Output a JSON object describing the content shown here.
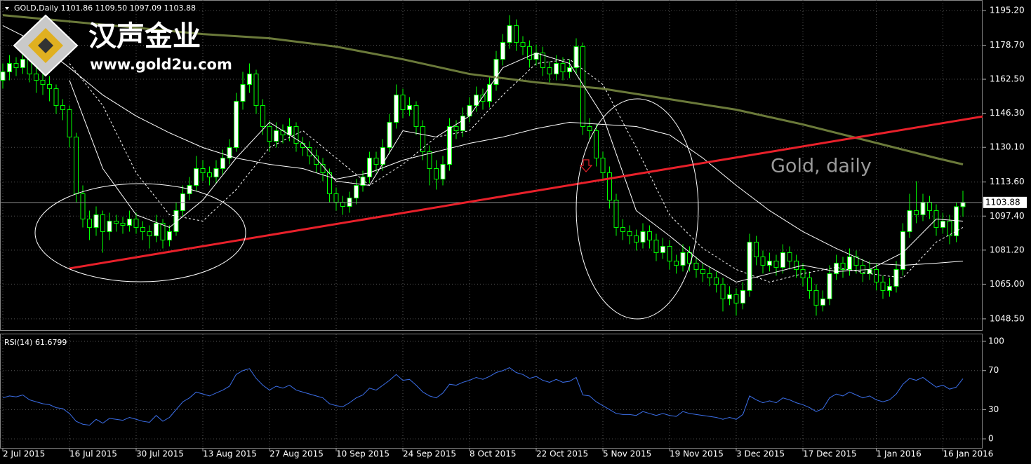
{
  "chart_data": {
    "type": "candlestick",
    "title": "GOLD,Daily 1101.86 1109.50 1097.09 1103.88",
    "rsi_title": "RSI(14) 61.6799",
    "logo_name": "汉声金业",
    "logo_url": "www.gold2u.com",
    "annotation": "Gold, daily",
    "categories": [
      "2 Jul 2015",
      null,
      null,
      null,
      null,
      null,
      null,
      null,
      null,
      null,
      "16 Jul 2015",
      null,
      null,
      null,
      null,
      null,
      null,
      null,
      null,
      null,
      "30 Jul 2015",
      null,
      null,
      null,
      null,
      null,
      null,
      null,
      null,
      null,
      "13 Aug 2015",
      null,
      null,
      null,
      null,
      null,
      null,
      null,
      null,
      null,
      "27 Aug 2015",
      null,
      null,
      null,
      null,
      null,
      null,
      null,
      null,
      null,
      "10 Sep 2015",
      null,
      null,
      null,
      null,
      null,
      null,
      null,
      null,
      null,
      "24 Sep 2015",
      null,
      null,
      null,
      null,
      null,
      null,
      null,
      null,
      null,
      "8 Oct 2015",
      null,
      null,
      null,
      null,
      null,
      null,
      null,
      null,
      null,
      "22 Oct 2015",
      null,
      null,
      null,
      null,
      null,
      null,
      null,
      null,
      null,
      "5 Nov 2015",
      null,
      null,
      null,
      null,
      null,
      null,
      null,
      null,
      null,
      "19 Nov 2015",
      null,
      null,
      null,
      null,
      null,
      null,
      null,
      null,
      null,
      "3 Dec 2015",
      null,
      null,
      null,
      null,
      null,
      null,
      null,
      null,
      null,
      "17 Dec 2015",
      null,
      null,
      null,
      null,
      null,
      null,
      null,
      null,
      null,
      null,
      "1 Jan 2016",
      null,
      null,
      null,
      null,
      null,
      null,
      null,
      null,
      null,
      "16 Jan 2016",
      null,
      null,
      null
    ],
    "ohlc": [
      [
        1162,
        1170,
        1158,
        1166
      ],
      [
        1166,
        1174,
        1162,
        1170
      ],
      [
        1170,
        1173,
        1164,
        1168
      ],
      [
        1168,
        1176,
        1165,
        1172
      ],
      [
        1172,
        1175,
        1161,
        1165
      ],
      [
        1165,
        1168,
        1156,
        1162
      ],
      [
        1162,
        1166,
        1155,
        1160
      ],
      [
        1160,
        1164,
        1152,
        1158
      ],
      [
        1158,
        1160,
        1146,
        1150
      ],
      [
        1150,
        1153,
        1143,
        1148
      ],
      [
        1148,
        1150,
        1130,
        1135
      ],
      [
        1135,
        1137,
        1104,
        1108
      ],
      [
        1108,
        1112,
        1092,
        1096
      ],
      [
        1096,
        1100,
        1086,
        1092
      ],
      [
        1092,
        1102,
        1088,
        1098
      ],
      [
        1098,
        1100,
        1080,
        1090
      ],
      [
        1090,
        1099,
        1086,
        1095
      ],
      [
        1095,
        1098,
        1090,
        1094
      ],
      [
        1094,
        1097,
        1089,
        1093
      ],
      [
        1093,
        1100,
        1090,
        1096
      ],
      [
        1096,
        1099,
        1089,
        1092
      ],
      [
        1092,
        1095,
        1086,
        1090
      ],
      [
        1090,
        1093,
        1082,
        1088
      ],
      [
        1088,
        1098,
        1085,
        1094
      ],
      [
        1094,
        1096,
        1082,
        1086
      ],
      [
        1086,
        1093,
        1083,
        1090
      ],
      [
        1090,
        1104,
        1088,
        1100
      ],
      [
        1100,
        1112,
        1097,
        1108
      ],
      [
        1108,
        1116,
        1105,
        1112
      ],
      [
        1112,
        1126,
        1109,
        1120
      ],
      [
        1120,
        1124,
        1114,
        1118
      ],
      [
        1118,
        1121,
        1112,
        1116
      ],
      [
        1116,
        1124,
        1113,
        1120
      ],
      [
        1120,
        1129,
        1117,
        1125
      ],
      [
        1125,
        1134,
        1122,
        1130
      ],
      [
        1130,
        1156,
        1128,
        1152
      ],
      [
        1152,
        1166,
        1148,
        1160
      ],
      [
        1160,
        1170,
        1156,
        1165
      ],
      [
        1165,
        1167,
        1146,
        1150
      ],
      [
        1150,
        1153,
        1136,
        1140
      ],
      [
        1140,
        1143,
        1128,
        1133
      ],
      [
        1133,
        1142,
        1130,
        1138
      ],
      [
        1138,
        1141,
        1132,
        1136
      ],
      [
        1136,
        1144,
        1133,
        1140
      ],
      [
        1140,
        1142,
        1128,
        1132
      ],
      [
        1132,
        1135,
        1126,
        1130
      ],
      [
        1130,
        1133,
        1122,
        1126
      ],
      [
        1126,
        1129,
        1118,
        1122
      ],
      [
        1122,
        1125,
        1114,
        1118
      ],
      [
        1118,
        1120,
        1104,
        1108
      ],
      [
        1108,
        1111,
        1100,
        1104
      ],
      [
        1104,
        1107,
        1098,
        1102
      ],
      [
        1102,
        1109,
        1099,
        1106
      ],
      [
        1106,
        1115,
        1103,
        1112
      ],
      [
        1112,
        1119,
        1109,
        1116
      ],
      [
        1116,
        1128,
        1113,
        1125
      ],
      [
        1125,
        1128,
        1118,
        1122
      ],
      [
        1122,
        1134,
        1119,
        1130
      ],
      [
        1130,
        1146,
        1127,
        1142
      ],
      [
        1142,
        1160,
        1139,
        1155
      ],
      [
        1155,
        1158,
        1144,
        1148
      ],
      [
        1148,
        1154,
        1145,
        1150
      ],
      [
        1150,
        1152,
        1136,
        1140
      ],
      [
        1140,
        1143,
        1124,
        1128
      ],
      [
        1128,
        1131,
        1112,
        1120
      ],
      [
        1120,
        1124,
        1110,
        1115
      ],
      [
        1115,
        1126,
        1112,
        1122
      ],
      [
        1122,
        1144,
        1119,
        1140
      ],
      [
        1140,
        1143,
        1134,
        1138
      ],
      [
        1138,
        1149,
        1135,
        1145
      ],
      [
        1145,
        1154,
        1142,
        1150
      ],
      [
        1150,
        1159,
        1147,
        1155
      ],
      [
        1155,
        1158,
        1148,
        1152
      ],
      [
        1152,
        1164,
        1149,
        1160
      ],
      [
        1160,
        1176,
        1157,
        1172
      ],
      [
        1172,
        1184,
        1169,
        1180
      ],
      [
        1180,
        1193,
        1177,
        1188
      ],
      [
        1188,
        1191,
        1176,
        1180
      ],
      [
        1180,
        1183,
        1174,
        1178
      ],
      [
        1178,
        1181,
        1168,
        1172
      ],
      [
        1172,
        1179,
        1169,
        1175
      ],
      [
        1175,
        1178,
        1164,
        1168
      ],
      [
        1168,
        1171,
        1161,
        1165
      ],
      [
        1165,
        1174,
        1162,
        1170
      ],
      [
        1170,
        1173,
        1162,
        1166
      ],
      [
        1166,
        1172,
        1163,
        1168
      ],
      [
        1168,
        1182,
        1165,
        1178
      ],
      [
        1178,
        1180,
        1136,
        1140
      ],
      [
        1140,
        1144,
        1134,
        1138
      ],
      [
        1138,
        1141,
        1121,
        1125
      ],
      [
        1125,
        1128,
        1114,
        1118
      ],
      [
        1118,
        1121,
        1101,
        1105
      ],
      [
        1105,
        1108,
        1088,
        1092
      ],
      [
        1092,
        1096,
        1086,
        1090
      ],
      [
        1090,
        1093,
        1084,
        1088
      ],
      [
        1088,
        1091,
        1081,
        1085
      ],
      [
        1085,
        1094,
        1082,
        1090
      ],
      [
        1090,
        1093,
        1082,
        1086
      ],
      [
        1086,
        1089,
        1076,
        1080
      ],
      [
        1080,
        1087,
        1077,
        1083
      ],
      [
        1083,
        1086,
        1072,
        1076
      ],
      [
        1076,
        1079,
        1070,
        1074
      ],
      [
        1074,
        1084,
        1071,
        1080
      ],
      [
        1080,
        1083,
        1071,
        1075
      ],
      [
        1075,
        1078,
        1068,
        1072
      ],
      [
        1072,
        1075,
        1066,
        1070
      ],
      [
        1070,
        1073,
        1064,
        1068
      ],
      [
        1068,
        1071,
        1061,
        1065
      ],
      [
        1065,
        1068,
        1052,
        1058
      ],
      [
        1058,
        1064,
        1055,
        1060
      ],
      [
        1060,
        1063,
        1050,
        1056
      ],
      [
        1056,
        1066,
        1053,
        1062
      ],
      [
        1062,
        1089,
        1059,
        1085
      ],
      [
        1085,
        1088,
        1074,
        1078
      ],
      [
        1078,
        1081,
        1070,
        1074
      ],
      [
        1074,
        1080,
        1071,
        1076
      ],
      [
        1076,
        1079,
        1069,
        1073
      ],
      [
        1073,
        1084,
        1070,
        1080
      ],
      [
        1080,
        1083,
        1072,
        1076
      ],
      [
        1076,
        1079,
        1068,
        1072
      ],
      [
        1072,
        1075,
        1064,
        1068
      ],
      [
        1068,
        1071,
        1058,
        1062
      ],
      [
        1062,
        1065,
        1050,
        1055
      ],
      [
        1055,
        1062,
        1052,
        1058
      ],
      [
        1058,
        1074,
        1055,
        1070
      ],
      [
        1070,
        1079,
        1067,
        1075
      ],
      [
        1075,
        1078,
        1068,
        1072
      ],
      [
        1072,
        1082,
        1069,
        1078
      ],
      [
        1078,
        1081,
        1070,
        1074
      ],
      [
        1074,
        1077,
        1066,
        1070
      ],
      [
        1070,
        1076,
        1067,
        1072
      ],
      [
        1072,
        1075,
        1062,
        1066
      ],
      [
        1066,
        1069,
        1058,
        1062
      ],
      [
        1062,
        1068,
        1059,
        1064
      ],
      [
        1064,
        1076,
        1061,
        1072
      ],
      [
        1072,
        1094,
        1069,
        1090
      ],
      [
        1090,
        1108,
        1087,
        1100
      ],
      [
        1100,
        1114,
        1094,
        1098
      ],
      [
        1098,
        1108,
        1095,
        1104
      ],
      [
        1104,
        1107,
        1096,
        1100
      ],
      [
        1100,
        1103,
        1088,
        1092
      ],
      [
        1092,
        1099,
        1089,
        1095
      ],
      [
        1095,
        1098,
        1084,
        1088
      ],
      [
        1088,
        1104,
        1085,
        1101.86
      ],
      [
        1101.86,
        1109.5,
        1097.09,
        1103.88
      ]
    ],
    "up_color": "#ffffff",
    "down_color": "#000000",
    "wick_color": "#00ff00",
    "ylim": [
      1042.8,
      1200.2
    ],
    "yticks": [
      {
        "value": 1195.2,
        "label": "1195.20"
      },
      {
        "value": 1178.7,
        "label": "1178.70"
      },
      {
        "value": 1162.5,
        "label": "1162.50"
      },
      {
        "value": 1146.3,
        "label": "1146.30"
      },
      {
        "value": 1130.1,
        "label": "1130.10"
      },
      {
        "value": 1113.6,
        "label": "1113.60"
      },
      {
        "value": 1097.4,
        "label": "1097.40"
      },
      {
        "value": 1081.2,
        "label": "1081.20"
      },
      {
        "value": 1065,
        "label": "1065.00"
      },
      {
        "value": 1048.5,
        "label": "1048.50"
      }
    ],
    "grid": true,
    "overlays": [
      {
        "color": "#6b7a3a",
        "width": 3,
        "dash": false,
        "x": [
          0,
          10,
          20,
          30,
          40,
          50,
          60,
          70,
          80,
          90,
          100,
          110,
          120,
          130,
          140,
          144
        ],
        "values": [
          1193,
          1190,
          1187,
          1184,
          1182,
          1178,
          1172,
          1165,
          1161,
          1158,
          1153,
          1148,
          1141,
          1133,
          1125,
          1122
        ]
      },
      {
        "color": "#ffffff",
        "width": 1,
        "dash": false,
        "x": [
          0,
          5,
          10,
          15,
          20,
          25,
          30,
          35,
          40,
          45,
          50,
          55,
          60,
          65,
          70,
          75,
          80,
          85,
          90,
          95,
          100,
          105,
          110,
          115,
          120,
          125,
          130,
          135,
          140,
          144
        ],
        "values": [
          1188,
          1180,
          1168,
          1155,
          1145,
          1137,
          1130,
          1125,
          1122,
          1120,
          1115,
          1118,
          1124,
          1128,
          1132,
          1135,
          1139,
          1142,
          1141,
          1140,
          1136,
          1125,
          1112,
          1100,
          1090,
          1082,
          1075,
          1074,
          1075,
          1076
        ]
      },
      {
        "color": "#ffffff",
        "width": 1,
        "dash": false,
        "x": [
          10,
          15,
          20,
          25,
          30,
          35,
          40,
          45,
          50,
          55,
          60,
          65,
          70,
          75,
          80,
          85,
          90,
          95,
          100,
          105,
          110,
          115,
          120,
          125,
          130,
          135,
          140,
          144
        ],
        "values": [
          1162,
          1120,
          1098,
          1092,
          1105,
          1125,
          1142,
          1132,
          1114,
          1112,
          1138,
          1135,
          1145,
          1168,
          1175,
          1170,
          1145,
          1100,
          1088,
          1075,
          1066,
          1070,
          1074,
          1071,
          1072,
          1080,
          1096,
          1095
        ]
      },
      {
        "color": "#ffffff",
        "width": 1,
        "dash": true,
        "x": [
          10,
          15,
          20,
          25,
          30,
          35,
          40,
          45,
          50,
          55,
          60,
          65,
          70,
          75,
          80,
          85,
          90,
          95,
          100,
          105,
          110,
          115,
          120,
          125,
          130,
          135,
          140,
          144
        ],
        "values": [
          1170,
          1150,
          1118,
          1098,
          1095,
          1110,
          1130,
          1138,
          1125,
          1112,
          1122,
          1135,
          1138,
          1155,
          1170,
          1172,
          1160,
          1130,
          1098,
          1082,
          1072,
          1066,
          1070,
          1073,
          1070,
          1068,
          1085,
          1092
        ]
      }
    ],
    "trendline": {
      "color": "#e8202a",
      "x": [
        10,
        154
      ],
      "values": [
        1072.5,
        1148.5
      ]
    },
    "rsi": {
      "color": "#3b6ee8",
      "ylim": [
        -10,
        107.2
      ],
      "yticks": [
        0,
        30,
        70,
        100
      ],
      "values": [
        42,
        44,
        43,
        45,
        40,
        38,
        36,
        35,
        32,
        31,
        26,
        18,
        15,
        14,
        20,
        16,
        21,
        20,
        19,
        22,
        20,
        18,
        17,
        24,
        18,
        22,
        30,
        38,
        42,
        48,
        46,
        44,
        47,
        50,
        54,
        66,
        70,
        72,
        62,
        55,
        50,
        54,
        52,
        55,
        50,
        48,
        46,
        44,
        42,
        36,
        34,
        33,
        37,
        42,
        45,
        52,
        50,
        55,
        60,
        66,
        60,
        61,
        55,
        48,
        44,
        42,
        47,
        56,
        55,
        58,
        60,
        63,
        61,
        64,
        68,
        70,
        73,
        68,
        66,
        62,
        64,
        60,
        58,
        61,
        58,
        59,
        63,
        45,
        44,
        38,
        34,
        30,
        26,
        25,
        25,
        24,
        28,
        26,
        24,
        26,
        24,
        23,
        28,
        26,
        25,
        24,
        23,
        22,
        20,
        22,
        20,
        25,
        44,
        40,
        37,
        39,
        37,
        42,
        40,
        37,
        35,
        32,
        28,
        31,
        42,
        46,
        44,
        48,
        45,
        42,
        44,
        40,
        38,
        40,
        46,
        56,
        62,
        60,
        63,
        58,
        53,
        55,
        51,
        53,
        61.6799
      ]
    }
  }
}
